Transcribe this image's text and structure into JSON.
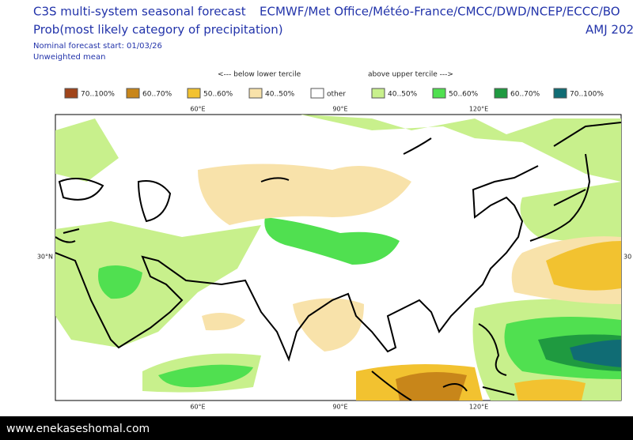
{
  "header": {
    "title": "C3S multi-system seasonal forecast",
    "subtitle": "Prob(most likely category of precipitation)",
    "start": "Nominal forecast start: 01/03/26",
    "method": "Unweighted mean",
    "centres": "ECMWF/Met Office/Météo-France/CMCC/DWD/NCEP/ECCC/BO",
    "season": "AMJ 202"
  },
  "legend": {
    "below": "<--- below lower tercile",
    "above": "above upper tercile --->",
    "items": [
      {
        "label": "70..100%",
        "color": "#a0441a"
      },
      {
        "label": "60..70%",
        "color": "#c8861a"
      },
      {
        "label": "50..60%",
        "color": "#f2c230"
      },
      {
        "label": "40..50%",
        "color": "#f8e2aa"
      },
      {
        "label": "other",
        "color": "#ffffff"
      },
      {
        "label": "40..50%",
        "color": "#c8f08c"
      },
      {
        "label": "50..60%",
        "color": "#50e050"
      },
      {
        "label": "60..70%",
        "color": "#1f9a40"
      },
      {
        "label": "70..100%",
        "color": "#106c74"
      }
    ]
  },
  "map": {
    "top_lons": [
      "60°E",
      "90°E",
      "120°E"
    ],
    "bottom_lons": [
      "60°E",
      "90°E",
      "120°E"
    ],
    "lat_left": "30°N",
    "lat_right": "30"
  },
  "footer": {
    "site": "www.enekaseshomal.com"
  }
}
